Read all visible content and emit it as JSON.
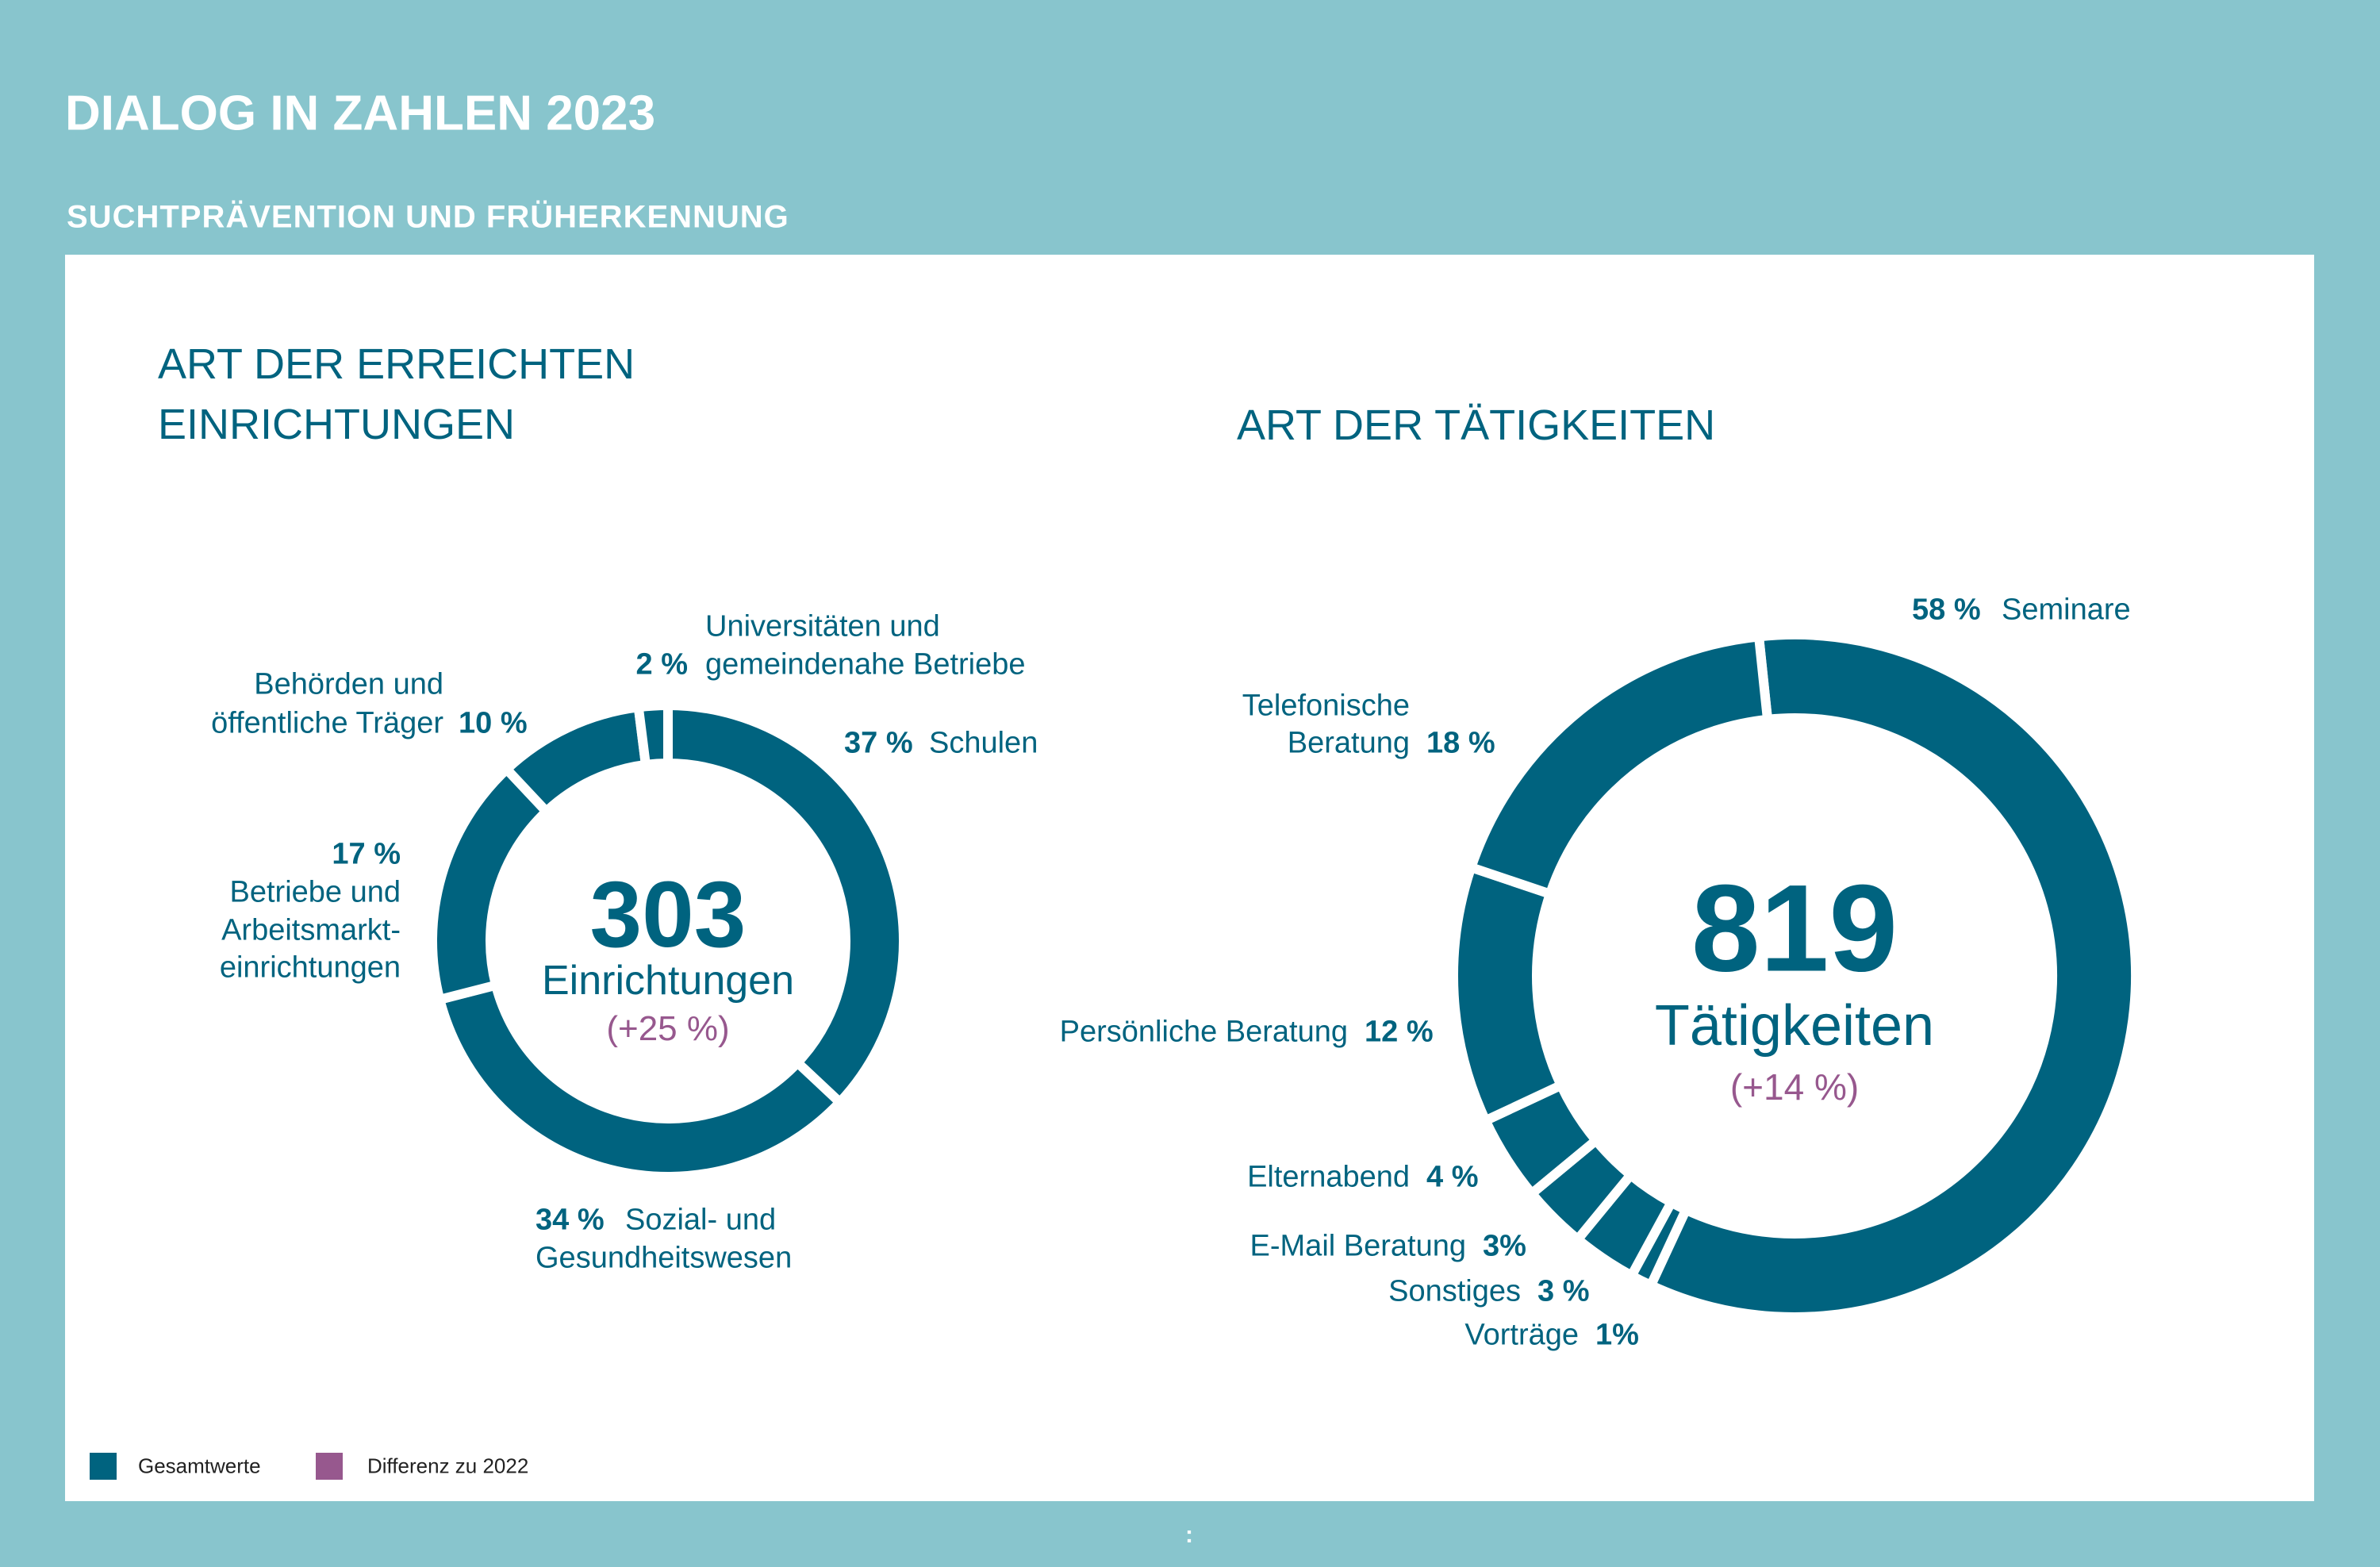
{
  "header": {
    "title": "DIALOG IN ZAHLEN 2023",
    "subtitle": "SUCHTPRÄVENTION UND FRÜHERKENNUNG"
  },
  "colors": {
    "background": "#88c5cd",
    "primary": "#00637f",
    "difference": "#97588e"
  },
  "chart_data": [
    {
      "type": "pie",
      "variant": "donut",
      "title": [
        "ART DER ERREICHTEN",
        "EINRICHTUNGEN"
      ],
      "center": {
        "value": "303",
        "label": "Einrichtungen",
        "diff": "(+25 %)"
      },
      "slices": [
        {
          "value": 37,
          "pct": "37 %",
          "label": [
            "Schulen"
          ]
        },
        {
          "value": 34,
          "pct": "34 %",
          "label": [
            "Sozial- und",
            "Gesundheitswesen"
          ]
        },
        {
          "value": 17,
          "pct": "17 %",
          "label": [
            "Betriebe und",
            "Arbeitsmarkt-",
            "einrichtungen"
          ]
        },
        {
          "value": 10,
          "pct": "10 %",
          "label": [
            "Behörden und",
            "öffentliche Träger"
          ]
        },
        {
          "value": 2,
          "pct": "2 %",
          "label": [
            "Universitäten und",
            "gemeindenahe Betriebe"
          ]
        }
      ]
    },
    {
      "type": "pie",
      "variant": "donut",
      "title": [
        "ART DER TÄTIGKEITEN"
      ],
      "center": {
        "value": "819",
        "label": "Tätigkeiten",
        "diff": "(+14 %)"
      },
      "slices": [
        {
          "value": 58,
          "pct": "58 %",
          "label": [
            "Seminare"
          ]
        },
        {
          "value": 1,
          "pct": "1%",
          "label": [
            "Vorträge"
          ]
        },
        {
          "value": 3,
          "pct": "3 %",
          "label": [
            "Sonstiges"
          ]
        },
        {
          "value": 3,
          "pct": "3%",
          "label": [
            "E-Mail Beratung"
          ]
        },
        {
          "value": 4,
          "pct": "4 %",
          "label": [
            "Elternabend"
          ]
        },
        {
          "value": 12,
          "pct": "12 %",
          "label": [
            "Persönliche Beratung"
          ]
        },
        {
          "value": 18,
          "pct": "18 %",
          "label": [
            "Telefonische",
            "Beratung"
          ]
        }
      ]
    }
  ],
  "legend": [
    {
      "label": "Gesamtwerte",
      "color": "#00637f"
    },
    {
      "label": "Differenz zu 2022",
      "color": "#97588e"
    }
  ],
  "footer": {
    "page_marker": ":"
  }
}
